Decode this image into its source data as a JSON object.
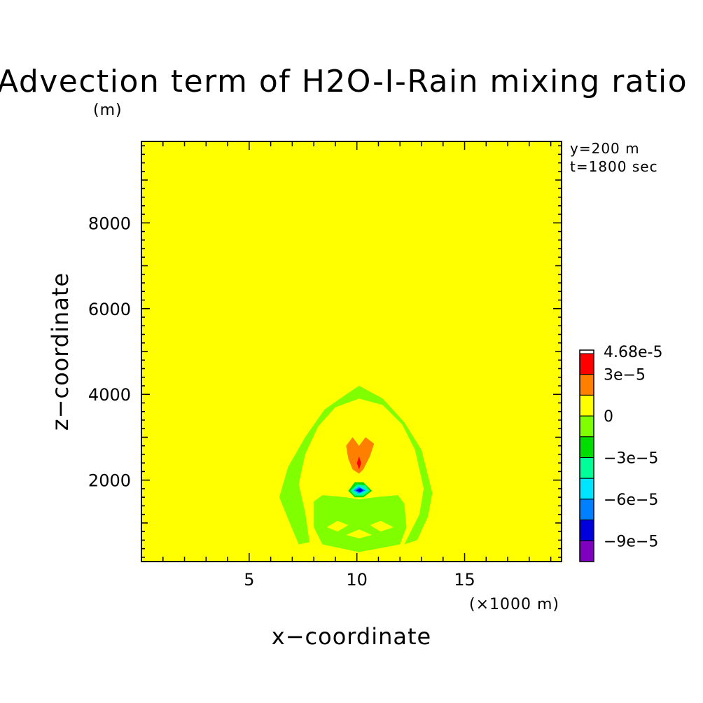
{
  "chart_data": {
    "type": "heatmap",
    "title": "Advection term of H2O-I-Rain mixing ratio",
    "title_units": "(m)",
    "annotations": [
      "y=200 m",
      "t=1800 sec"
    ],
    "xlabel": "x−coordinate",
    "xunits": "(×1000 m)",
    "ylabel": "z−coordinate",
    "xlim": [
      0,
      19.5
    ],
    "ylim": [
      100,
      9900
    ],
    "xticks": [
      5,
      10,
      15
    ],
    "yticks": [
      2000,
      4000,
      6000,
      8000
    ],
    "colorbar": {
      "max_label": "4.68e-5",
      "tick_labels": [
        "3e−5",
        "0",
        "−3e−5",
        "−6e−5",
        "−9e−5"
      ],
      "colors": [
        "#ffffff",
        "#ff0000",
        "#ff7f00",
        "#ffff00",
        "#7fff00",
        "#00dd00",
        "#00ff99",
        "#00e5ff",
        "#007fff",
        "#0000dd",
        "#7f00bf"
      ]
    },
    "background_color": "#ffff00",
    "features": [
      {
        "name": "arch",
        "level": "-1.5e-5 to 0",
        "color": "#7fff00",
        "outer": [
          [
            6.4,
            1600
          ],
          [
            6.8,
            2300
          ],
          [
            7.6,
            3000
          ],
          [
            8.5,
            3650
          ],
          [
            9.5,
            4000
          ],
          [
            10.1,
            4200
          ],
          [
            11.2,
            3900
          ],
          [
            12.2,
            3350
          ],
          [
            13.0,
            2700
          ],
          [
            13.5,
            1700
          ],
          [
            13.3,
            1150
          ],
          [
            12.8,
            600
          ],
          [
            12.2,
            500
          ],
          [
            12.9,
            1200
          ],
          [
            13.1,
            1800
          ],
          [
            12.7,
            2700
          ],
          [
            12.1,
            3300
          ],
          [
            11.2,
            3750
          ],
          [
            10.1,
            3900
          ],
          [
            9.0,
            3700
          ],
          [
            8.2,
            3250
          ],
          [
            7.6,
            2600
          ],
          [
            7.3,
            1900
          ],
          [
            7.6,
            1250
          ],
          [
            7.8,
            550
          ],
          [
            7.3,
            500
          ],
          [
            6.8,
            1100
          ]
        ]
      },
      {
        "name": "lower-block",
        "level": "-1.5e-5 to 0",
        "color": "#7fff00",
        "outer": [
          [
            8.0,
            1500
          ],
          [
            8.4,
            1650
          ],
          [
            9.5,
            1600
          ],
          [
            10.1,
            1550
          ],
          [
            10.8,
            1600
          ],
          [
            11.9,
            1650
          ],
          [
            12.2,
            1450
          ],
          [
            12.3,
            900
          ],
          [
            12.0,
            500
          ],
          [
            10.1,
            320
          ],
          [
            8.4,
            500
          ],
          [
            8.0,
            900
          ]
        ]
      },
      {
        "name": "lower-cavity",
        "level": "0",
        "color": "#ffff00",
        "outer": [
          [
            8.6,
            900
          ],
          [
            9.1,
            1050
          ],
          [
            9.6,
            950
          ],
          [
            9.1,
            800
          ]
        ]
      },
      {
        "name": "lower-cavity",
        "level": "0",
        "color": "#ffff00",
        "outer": [
          [
            10.6,
            950
          ],
          [
            11.1,
            1050
          ],
          [
            11.7,
            900
          ],
          [
            11.1,
            800
          ]
        ]
      },
      {
        "name": "lower-cavity",
        "level": "0",
        "color": "#ffff00",
        "outer": [
          [
            9.5,
            720
          ],
          [
            10.1,
            850
          ],
          [
            10.7,
            720
          ],
          [
            10.1,
            640
          ]
        ]
      },
      {
        "name": "positive-lobe",
        "level": "1.5e-5 to 3e-5",
        "color": "#ff7f00",
        "outer": [
          [
            9.8,
            2250
          ],
          [
            9.6,
            2500
          ],
          [
            9.5,
            2800
          ],
          [
            9.8,
            3000
          ],
          [
            10.1,
            2800
          ],
          [
            10.4,
            3000
          ],
          [
            10.8,
            2850
          ],
          [
            10.6,
            2550
          ],
          [
            10.3,
            2250
          ],
          [
            10.1,
            2150
          ]
        ]
      },
      {
        "name": "positive-core",
        "level": "3e-5 to 4.68e-5",
        "color": "#ff0000",
        "outer": [
          [
            10.1,
            2250
          ],
          [
            10.2,
            2400
          ],
          [
            10.1,
            2550
          ],
          [
            10.0,
            2400
          ]
        ]
      },
      {
        "name": "negative-cell",
        "level": "-1.5e-5 to -3e-5",
        "color": "#00dd00",
        "outer": [
          [
            9.6,
            1750
          ],
          [
            9.9,
            1950
          ],
          [
            10.3,
            1950
          ],
          [
            10.7,
            1750
          ],
          [
            10.3,
            1600
          ],
          [
            9.9,
            1600
          ]
        ]
      },
      {
        "name": "negative-cell",
        "level": "-3e-5 to -4.5e-5",
        "color": "#00ff99",
        "outer": [
          [
            9.7,
            1750
          ],
          [
            10.0,
            1900
          ],
          [
            10.4,
            1880
          ],
          [
            10.6,
            1750
          ],
          [
            10.3,
            1640
          ],
          [
            9.9,
            1640
          ]
        ]
      },
      {
        "name": "negative-cell",
        "level": "-4.5e-5 to -6e-5",
        "color": "#00e5ff",
        "outer": [
          [
            9.8,
            1760
          ],
          [
            10.1,
            1870
          ],
          [
            10.5,
            1760
          ],
          [
            10.1,
            1660
          ]
        ]
      },
      {
        "name": "negative-cell",
        "level": "-6e-5 to -7.5e-5",
        "color": "#007fff",
        "outer": [
          [
            9.85,
            1760
          ],
          [
            10.1,
            1840
          ],
          [
            10.4,
            1760
          ],
          [
            10.1,
            1690
          ]
        ]
      },
      {
        "name": "negative-core",
        "level": "-7.5e-5 to -9e-5",
        "color": "#0000dd",
        "outer": [
          [
            9.95,
            1760
          ],
          [
            10.15,
            1810
          ],
          [
            10.3,
            1760
          ],
          [
            10.15,
            1715
          ]
        ]
      }
    ]
  }
}
